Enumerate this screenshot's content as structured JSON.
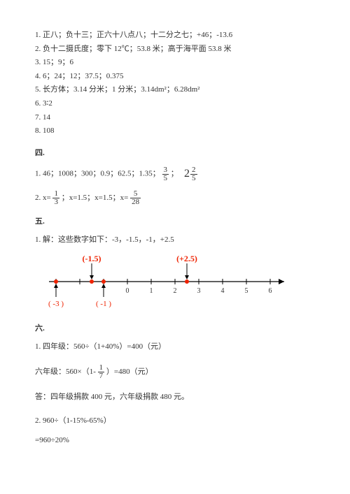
{
  "lines": {
    "l1": "1. 正八；负十三；正六十八点八；十二分之七；+46；-13.6",
    "l2": "2. 负十二摄氏度；零下 12℃；53.8 米；高于海平面 53.8 米",
    "l3": "3. 15；9；6",
    "l4": "4. 6；24；12；37.5；0.375",
    "l5": "5. 长方体；3.14 分米；1 分米；3.14dm²；6.28dm²",
    "l6": "6. 3∶2",
    "l7": "7. 14",
    "l8": "8. 108"
  },
  "sec4": {
    "head": "四.",
    "row1_a": "1. 46；1008；300；0.9；62.5；1.35；",
    "row1_sep1": "；",
    "row2_a": "2. x=",
    "row2_b": "；x=1.5；x=1.5；x="
  },
  "frac": {
    "f35_n": "3",
    "f35_d": "5",
    "mixed_w": "2",
    "f225_n": "2",
    "f225_d": "5",
    "f13_n": "1",
    "f13_d": "3",
    "f528_n": "5",
    "f528_d": "28",
    "f17_n": "1",
    "f17_d": "7"
  },
  "sec5": {
    "head": "五.",
    "line": "1. 解：这些数字如下：-3，-1.5，-1，+2.5"
  },
  "numberline": {
    "ticks": [
      -3,
      -2,
      -1,
      0,
      1,
      2,
      3,
      4,
      5,
      6
    ],
    "tick_labels": [
      "",
      "",
      "",
      "0",
      "1",
      "2",
      "3",
      "4",
      "5",
      "6"
    ],
    "top_labels": [
      {
        "x": -1.5,
        "text": "(-1.5)"
      },
      {
        "x": 2.5,
        "text": "(+2.5)"
      }
    ],
    "bottom_labels": [
      {
        "x": -3,
        "text": "( -3 )"
      },
      {
        "x": -1,
        "text": "( -1 )"
      }
    ],
    "red_points": [
      -3,
      -1.5,
      -1,
      2.5
    ],
    "colors": {
      "dot": "#e20",
      "axis": "#000"
    }
  },
  "sec6": {
    "head": "六.",
    "l1": "1. 四年级：560÷（1+40%）=400（元）",
    "l2_a": "六年级：560×（1-",
    "l2_b": "）=480（元）",
    "ans": "答：四年级捐款 400 元，六年级捐款 480 元。",
    "l3": "2. 960÷（1-15%-65%）",
    "l4": "=960÷20%"
  }
}
